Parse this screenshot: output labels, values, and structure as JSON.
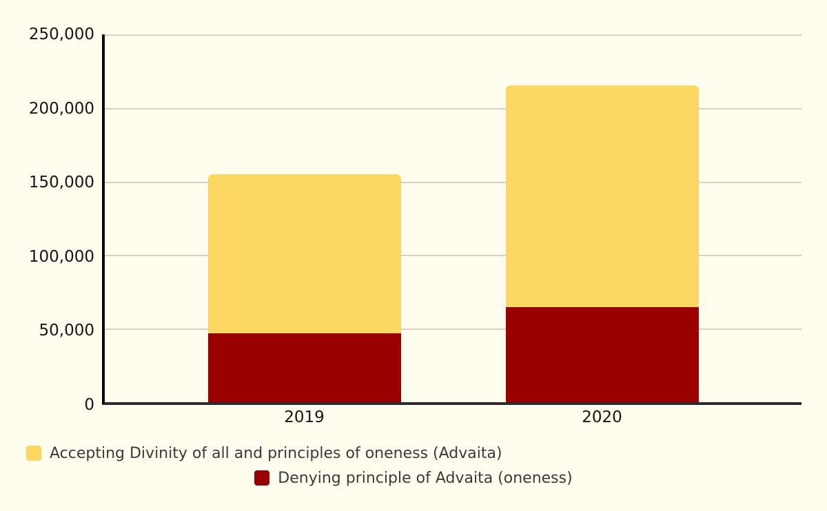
{
  "page": {
    "background": "#fffdee"
  },
  "chart_data": {
    "type": "bar",
    "stacked": true,
    "title": "",
    "xlabel": "",
    "ylabel": "",
    "categories": [
      "2019",
      "2020"
    ],
    "series": [
      {
        "name": "Denying principle of Advaita (oneness)",
        "color": "#9a0000",
        "values": [
          47000,
          64500
        ]
      },
      {
        "name": "Accepting Divinity of all and principles of oneness (Advaita)",
        "color": "#fcd863",
        "values": [
          108000,
          151000
        ]
      }
    ],
    "stack_totals": [
      155000,
      215500
    ],
    "ylim": [
      0,
      250000
    ],
    "yticks": [
      {
        "value": 0,
        "label": "0"
      },
      {
        "value": 50000,
        "label": "50,000"
      },
      {
        "value": 100000,
        "label": "100,000"
      },
      {
        "value": 150000,
        "label": "150,000"
      },
      {
        "value": 200000,
        "label": "200,000"
      },
      {
        "value": 250000,
        "label": "250,000"
      }
    ],
    "grid": true,
    "legend_position": "bottom",
    "legend": [
      {
        "label": "Accepting Divinity of all and principles of oneness (Advaita)",
        "color": "#fcd863"
      },
      {
        "label": "Denying principle of Advaita (oneness)",
        "color": "#9a0000"
      }
    ],
    "colors": {
      "background": "#fffdee",
      "gridline": "#d2d2c4",
      "y_axis": "#0a0a0a",
      "x_axis": "#2b2b2b",
      "tick_text": "#161616",
      "legend_text": "#3a3a3a"
    }
  }
}
